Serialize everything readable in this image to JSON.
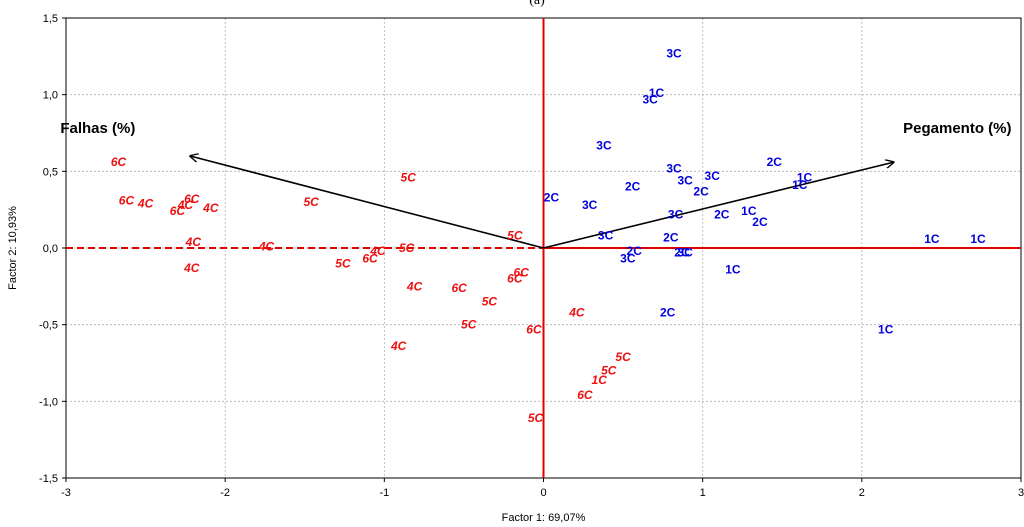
{
  "chart_data": {
    "type": "scatter",
    "title": "",
    "top_partial_text": "(a)",
    "xlabel": "Factor 1: 69,07%",
    "ylabel": "Factor 2: 10,93%",
    "xlim": [
      -3,
      3
    ],
    "ylim": [
      -1.5,
      1.5
    ],
    "xticks": [
      -3,
      -2,
      -1,
      0,
      1,
      2,
      3
    ],
    "xtick_labels": [
      "-3",
      "-2",
      "-1",
      "0",
      "1",
      "2",
      "3"
    ],
    "yticks": [
      -1.5,
      -1.0,
      -0.5,
      0.0,
      0.5,
      1.0,
      1.5
    ],
    "ytick_labels": [
      "-1,5",
      "-1,0",
      "-0,5",
      "0,0",
      "0,5",
      "1,0",
      "1,5"
    ],
    "grid": true,
    "colors": {
      "variables": "#0000dd",
      "cases": "#ee1111",
      "axes_lines": "#e00000",
      "vectors": "#000000"
    },
    "reference_lines": [
      {
        "orientation": "horizontal",
        "value": 0.0,
        "dash": "dashed",
        "from": -3,
        "to": 0
      },
      {
        "orientation": "horizontal",
        "value": 0.0,
        "dash": "solid",
        "from": 0,
        "to": 3
      },
      {
        "orientation": "vertical",
        "value": 0.0,
        "dash": "solid",
        "from": -1.5,
        "to": 1.5
      }
    ],
    "vectors": [
      {
        "label": "Falhas (%)",
        "x": -2.22,
        "y": 0.6,
        "label_x": -2.8,
        "label_y": 0.75
      },
      {
        "label": "Pegamento (%)",
        "x": 2.2,
        "y": 0.56,
        "label_x": 2.6,
        "label_y": 0.75
      }
    ],
    "series": [
      {
        "name": "blue",
        "style": "blue",
        "points": [
          {
            "x": 0.82,
            "y": 1.27,
            "label": "3C"
          },
          {
            "x": 0.71,
            "y": 1.01,
            "label": "1C"
          },
          {
            "x": 0.67,
            "y": 0.97,
            "label": "3C"
          },
          {
            "x": 0.38,
            "y": 0.67,
            "label": "3C"
          },
          {
            "x": 0.82,
            "y": 0.52,
            "label": "3C"
          },
          {
            "x": 0.89,
            "y": 0.44,
            "label": "3C"
          },
          {
            "x": 1.06,
            "y": 0.47,
            "label": "3C"
          },
          {
            "x": 0.99,
            "y": 0.37,
            "label": "2C"
          },
          {
            "x": 1.45,
            "y": 0.56,
            "label": "2C"
          },
          {
            "x": 1.64,
            "y": 0.46,
            "label": "1C"
          },
          {
            "x": 1.61,
            "y": 0.41,
            "label": "1C"
          },
          {
            "x": 0.56,
            "y": 0.4,
            "label": "2C"
          },
          {
            "x": 0.05,
            "y": 0.33,
            "label": "2C"
          },
          {
            "x": 0.29,
            "y": 0.28,
            "label": "3C"
          },
          {
            "x": 0.83,
            "y": 0.22,
            "label": "3C"
          },
          {
            "x": 1.12,
            "y": 0.22,
            "label": "2C"
          },
          {
            "x": 1.29,
            "y": 0.24,
            "label": "1C"
          },
          {
            "x": 1.36,
            "y": 0.17,
            "label": "2C"
          },
          {
            "x": 0.39,
            "y": 0.08,
            "label": "3C"
          },
          {
            "x": 0.8,
            "y": 0.07,
            "label": "2C"
          },
          {
            "x": 0.57,
            "y": -0.02,
            "label": "2C"
          },
          {
            "x": 0.53,
            "y": -0.07,
            "label": "3C"
          },
          {
            "x": 0.87,
            "y": -0.03,
            "label": "2C"
          },
          {
            "x": 0.89,
            "y": -0.03,
            "label": "3C"
          },
          {
            "x": 1.19,
            "y": -0.14,
            "label": "1C"
          },
          {
            "x": 2.44,
            "y": 0.06,
            "label": "1C"
          },
          {
            "x": 2.73,
            "y": 0.06,
            "label": "1C"
          },
          {
            "x": 0.78,
            "y": -0.42,
            "label": "2C"
          },
          {
            "x": 2.15,
            "y": -0.53,
            "label": "1C"
          }
        ]
      },
      {
        "name": "red",
        "style": "red",
        "points": [
          {
            "x": -2.67,
            "y": 0.56,
            "label": "6C"
          },
          {
            "x": -2.62,
            "y": 0.31,
            "label": "6C"
          },
          {
            "x": -2.5,
            "y": 0.29,
            "label": "4C"
          },
          {
            "x": -2.21,
            "y": 0.32,
            "label": "6C"
          },
          {
            "x": -2.25,
            "y": 0.28,
            "label": "4C"
          },
          {
            "x": -2.3,
            "y": 0.24,
            "label": "6C"
          },
          {
            "x": -2.09,
            "y": 0.26,
            "label": "4C"
          },
          {
            "x": -2.2,
            "y": 0.04,
            "label": "4C"
          },
          {
            "x": -2.21,
            "y": -0.13,
            "label": "4C"
          },
          {
            "x": -1.74,
            "y": 0.01,
            "label": "4C"
          },
          {
            "x": -1.46,
            "y": 0.3,
            "label": "5C"
          },
          {
            "x": -0.85,
            "y": 0.46,
            "label": "5C"
          },
          {
            "x": -0.86,
            "y": 0.0,
            "label": "5C"
          },
          {
            "x": -1.04,
            "y": -0.02,
            "label": "4C"
          },
          {
            "x": -1.09,
            "y": -0.07,
            "label": "6C"
          },
          {
            "x": -1.26,
            "y": -0.1,
            "label": "5C"
          },
          {
            "x": -0.81,
            "y": -0.25,
            "label": "4C"
          },
          {
            "x": -0.53,
            "y": -0.26,
            "label": "6C"
          },
          {
            "x": -0.18,
            "y": 0.08,
            "label": "5C"
          },
          {
            "x": -0.14,
            "y": -0.16,
            "label": "6C"
          },
          {
            "x": -0.18,
            "y": -0.2,
            "label": "6C"
          },
          {
            "x": -0.34,
            "y": -0.35,
            "label": "5C"
          },
          {
            "x": -0.47,
            "y": -0.5,
            "label": "5C"
          },
          {
            "x": -0.91,
            "y": -0.64,
            "label": "4C"
          },
          {
            "x": 0.21,
            "y": -0.42,
            "label": "4C"
          },
          {
            "x": -0.06,
            "y": -0.53,
            "label": "6C"
          },
          {
            "x": 0.5,
            "y": -0.71,
            "label": "5C"
          },
          {
            "x": 0.41,
            "y": -0.8,
            "label": "5C"
          },
          {
            "x": 0.35,
            "y": -0.86,
            "label": "1C"
          },
          {
            "x": 0.26,
            "y": -0.96,
            "label": "6C"
          },
          {
            "x": -0.05,
            "y": -1.11,
            "label": "5C"
          }
        ]
      }
    ]
  }
}
